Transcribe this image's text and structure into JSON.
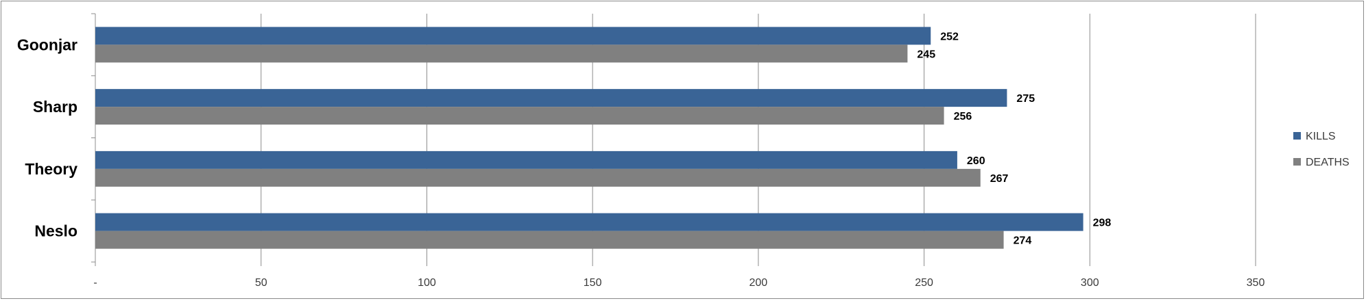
{
  "chart_data": {
    "type": "bar",
    "orientation": "horizontal",
    "categories": [
      "Goonjar",
      "Sharp",
      "Theory",
      "Neslo"
    ],
    "series": [
      {
        "name": "KILLS",
        "values": [
          252,
          275,
          260,
          298
        ],
        "color": "#3a6496"
      },
      {
        "name": "DEATHS",
        "values": [
          245,
          256,
          267,
          274
        ],
        "color": "#808080"
      }
    ],
    "x_ticks": [
      0,
      50,
      100,
      150,
      200,
      250,
      300,
      350
    ],
    "x_tick_labels": [
      "-",
      "50",
      "100",
      "150",
      "200",
      "250",
      "300",
      "350"
    ],
    "xlim": [
      0,
      350
    ],
    "grid": true,
    "legend_position": "right",
    "title": "",
    "xlabel": "",
    "ylabel": ""
  }
}
